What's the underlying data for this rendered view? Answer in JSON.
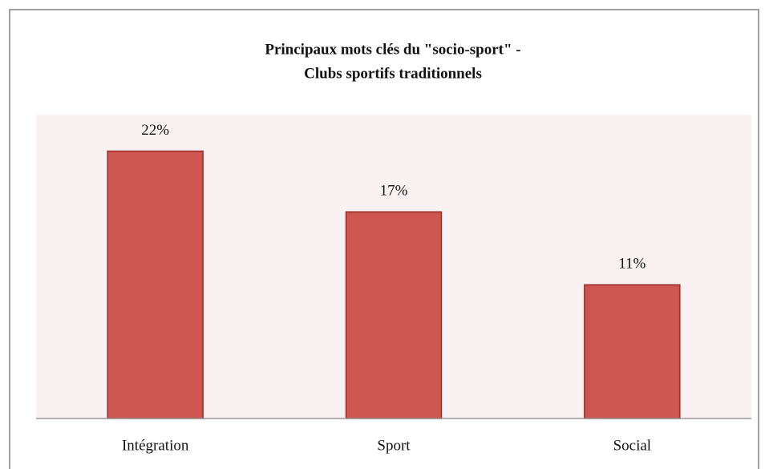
{
  "chart_data": {
    "type": "bar",
    "title": [
      "Principaux mots clés du \"socio-sport\" -",
      "Clubs sportifs traditionnels"
    ],
    "categories": [
      "Intégration",
      "Sport",
      "Social"
    ],
    "values": [
      22,
      17,
      11
    ],
    "value_labels": [
      "22%",
      "17%",
      "11%"
    ],
    "color": "#cd5650",
    "ylim": [
      0,
      25
    ]
  }
}
